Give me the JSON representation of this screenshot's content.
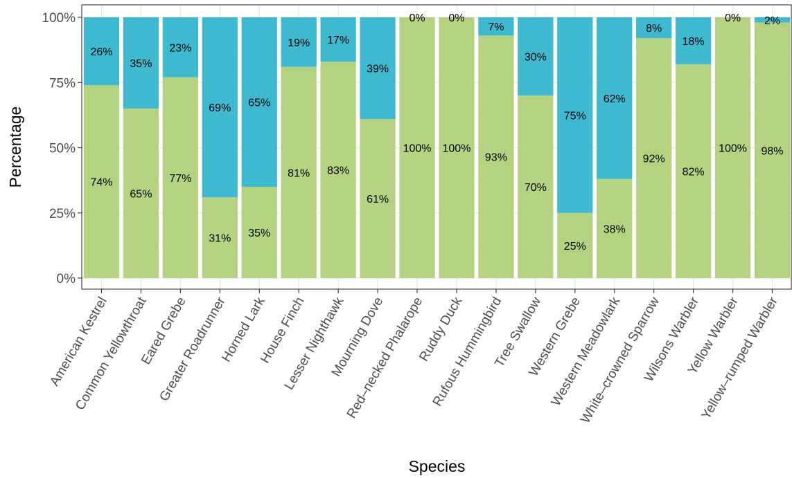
{
  "chart_data": {
    "type": "bar",
    "stacked": true,
    "orientation": "vertical",
    "title": "",
    "xlabel": "Species",
    "ylabel": "Percentage",
    "ylim": [
      0,
      100
    ],
    "y_ticks": [
      0,
      25,
      50,
      75,
      100
    ],
    "y_tick_labels": [
      "0%",
      "25%",
      "50%",
      "75%",
      "100%"
    ],
    "grid": true,
    "legend": "none",
    "categories": [
      "American Kestrel",
      "Common Yellowthroat",
      "Eared Grebe",
      "Greater Roadrunner",
      "Horned Lark",
      "House Finch",
      "Lesser Nighthawk",
      "Mourning Dove",
      "Red–necked Phalarope",
      "Ruddy Duck",
      "Rufous Hummingbird",
      "Tree Swallow",
      "Western Grebe",
      "Western Meadowlark",
      "White–crowned Sparrow",
      "Wilsons Warbler",
      "Yellow Warbler",
      "Yellow–rumped Warbler"
    ],
    "series": [
      {
        "color": "#b3d383",
        "values": [
          74,
          65,
          77,
          31,
          35,
          81,
          83,
          61,
          100,
          100,
          93,
          70,
          25,
          38,
          92,
          82,
          100,
          98
        ],
        "labels": [
          "74%",
          "65%",
          "77%",
          "31%",
          "35%",
          "81%",
          "83%",
          "61%",
          "100%",
          "100%",
          "93%",
          "70%",
          "25%",
          "38%",
          "92%",
          "82%",
          "100%",
          "98%"
        ]
      },
      {
        "color": "#3fb9d0",
        "values": [
          26,
          35,
          23,
          69,
          65,
          19,
          17,
          39,
          0,
          0,
          7,
          30,
          75,
          62,
          8,
          18,
          0,
          2
        ],
        "labels": [
          "26%",
          "35%",
          "23%",
          "69%",
          "65%",
          "19%",
          "17%",
          "39%",
          "0%",
          "0%",
          "7%",
          "30%",
          "75%",
          "62%",
          "8%",
          "18%",
          "0%",
          "2%"
        ]
      }
    ]
  }
}
